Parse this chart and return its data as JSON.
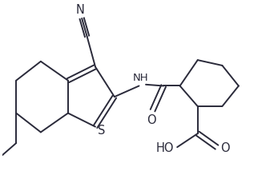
{
  "bg_color": "#ffffff",
  "line_color": "#2a2a3a",
  "line_width": 1.4,
  "font_size": 9.5,
  "xlim": [
    0,
    10
  ],
  "ylim": [
    0,
    6.5
  ]
}
